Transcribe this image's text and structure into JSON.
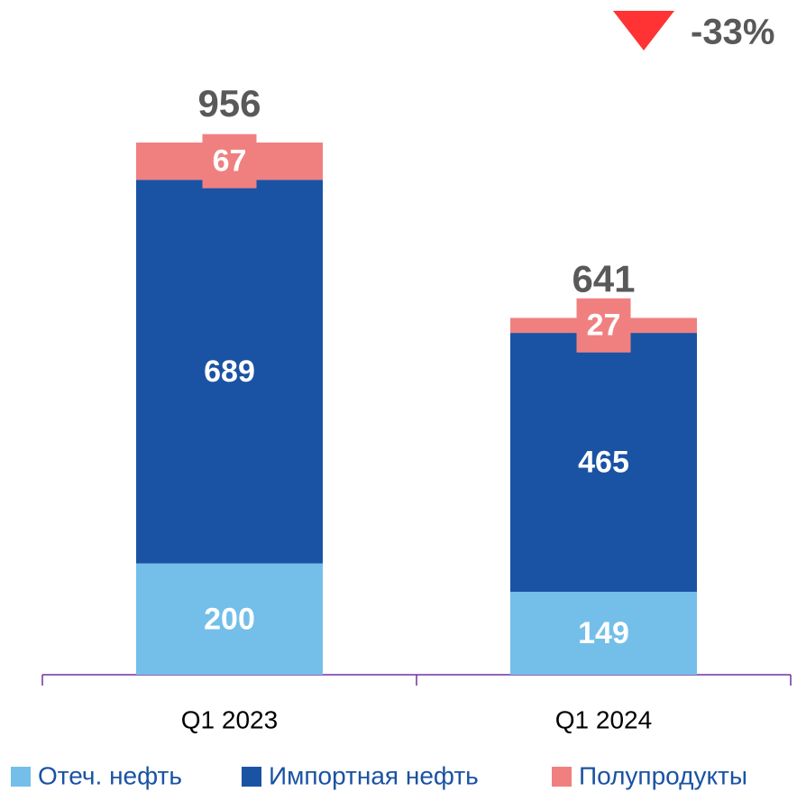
{
  "chart_data": {
    "type": "bar",
    "stacked": true,
    "categories": [
      "Q1 2023",
      "Q1 2024"
    ],
    "series": [
      {
        "name": "Отеч. нефть",
        "color": "#73bfe9",
        "values": [
          200,
          149
        ]
      },
      {
        "name": "Импортная нефть",
        "color": "#1a53a3",
        "values": [
          689,
          465
        ]
      },
      {
        "name": "Полупродукты",
        "color": "#f08080",
        "values": [
          67,
          27
        ]
      }
    ],
    "totals": [
      956,
      641
    ],
    "annotation": "-33%",
    "annotation_color": "#ff3333"
  }
}
